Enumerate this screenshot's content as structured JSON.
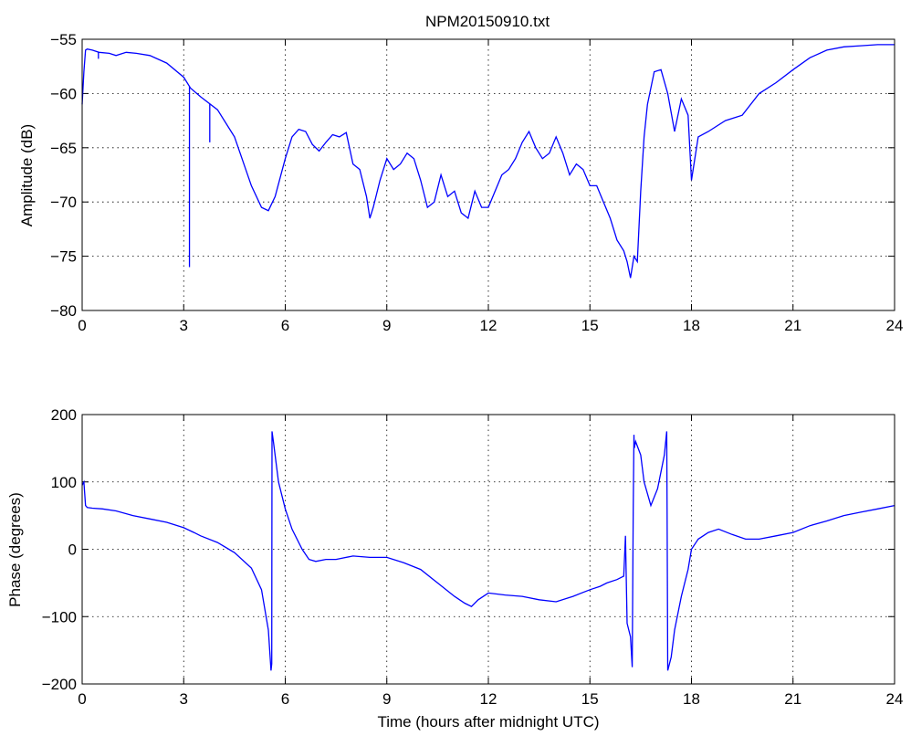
{
  "title": "NPM20150910.txt",
  "line_color": "#0000ff",
  "chart_data": [
    {
      "type": "line",
      "title": "NPM20150910.txt",
      "xlabel": "",
      "ylabel": "Amplitude (dB)",
      "xlim": [
        0,
        24
      ],
      "ylim": [
        -80,
        -55
      ],
      "xticks": [
        0,
        3,
        6,
        9,
        12,
        15,
        18,
        21,
        24
      ],
      "yticks": [
        -80,
        -75,
        -70,
        -65,
        -60,
        -55
      ],
      "xtick_labels": [
        "0",
        "3",
        "6",
        "9",
        "12",
        "15",
        "18",
        "21",
        "24"
      ],
      "ytick_labels": [
        "−80",
        "−75",
        "−70",
        "−65",
        "−60",
        "−55"
      ],
      "grid": true,
      "series": [
        {
          "x": [
            0,
            0.05,
            0.1,
            0.15,
            0.3,
            0.5,
            0.8,
            1.0,
            1.3,
            1.6,
            2.0,
            2.5,
            3.0,
            3.2,
            3.5,
            4.0,
            4.5,
            5.0,
            5.3,
            5.5,
            5.7,
            6.0,
            6.2,
            6.4,
            6.6,
            6.8,
            7.0,
            7.2,
            7.4,
            7.6,
            7.8,
            8.0,
            8.2,
            8.4,
            8.5,
            8.6,
            8.8,
            9.0,
            9.2,
            9.4,
            9.6,
            9.8,
            10.0,
            10.2,
            10.4,
            10.6,
            10.8,
            11.0,
            11.2,
            11.4,
            11.6,
            11.8,
            12.0,
            12.2,
            12.4,
            12.6,
            12.8,
            13.0,
            13.2,
            13.4,
            13.6,
            13.8,
            14.0,
            14.2,
            14.4,
            14.6,
            14.8,
            15.0,
            15.2,
            15.4,
            15.6,
            15.8,
            16.0,
            16.1,
            16.2,
            16.3,
            16.4,
            16.5,
            16.6,
            16.7,
            16.9,
            17.1,
            17.3,
            17.5,
            17.7,
            17.9,
            18.0,
            18.2,
            18.5,
            19.0,
            19.5,
            20.0,
            20.5,
            21.0,
            21.5,
            22.0,
            22.5,
            23.0,
            23.5,
            24.0
          ],
          "y": [
            -61,
            -58,
            -56,
            -55.9,
            -56,
            -56.2,
            -56.3,
            -56.5,
            -56.2,
            -56.3,
            -56.5,
            -57.2,
            -58.5,
            -59.5,
            -60.3,
            -61.5,
            -64,
            -68.5,
            -70.5,
            -70.8,
            -69.5,
            -66,
            -64,
            -63.3,
            -63.5,
            -64.7,
            -65.3,
            -64.5,
            -63.8,
            -64,
            -63.6,
            -66.5,
            -67,
            -69.5,
            -71.5,
            -70.5,
            -68,
            -66,
            -67,
            -66.5,
            -65.5,
            -66,
            -68,
            -70.5,
            -70,
            -67.5,
            -69.5,
            -69,
            -71,
            -71.5,
            -69,
            -70.5,
            -70.5,
            -69,
            -67.5,
            -67,
            -66,
            -64.5,
            -63.5,
            -65,
            -66,
            -65.5,
            -64,
            -65.5,
            -67.5,
            -66.5,
            -67,
            -68.5,
            -68.5,
            -70,
            -71.5,
            -73.5,
            -74.5,
            -75.5,
            -77,
            -75,
            -75.5,
            -69,
            -64,
            -61,
            -58,
            -57.8,
            -60,
            -63.5,
            -60.5,
            -62,
            -68,
            -64,
            -63.5,
            -62.5,
            -62,
            -60,
            -59,
            -57.8,
            -56.7,
            -56,
            -55.7,
            -55.6,
            -55.5,
            -55.5
          ],
          "spikes": [
            {
              "x": 3.17,
              "y": -76
            },
            {
              "x": 3.77,
              "y": -64.5
            },
            {
              "x": 0.48,
              "y": -56.8
            }
          ]
        }
      ]
    },
    {
      "type": "line",
      "title": "",
      "xlabel": "Time (hours after midnight UTC)",
      "ylabel": "Phase (degrees)",
      "xlim": [
        0,
        24
      ],
      "ylim": [
        -200,
        200
      ],
      "xticks": [
        0,
        3,
        6,
        9,
        12,
        15,
        18,
        21,
        24
      ],
      "yticks": [
        -200,
        -100,
        0,
        100,
        200
      ],
      "xtick_labels": [
        "0",
        "3",
        "6",
        "9",
        "12",
        "15",
        "18",
        "21",
        "24"
      ],
      "ytick_labels": [
        "−200",
        "−100",
        "0",
        "100",
        "200"
      ],
      "grid": true,
      "series": [
        {
          "x": [
            0,
            0.05,
            0.1,
            0.15,
            0.3,
            0.6,
            1.0,
            1.5,
            2.0,
            2.5,
            3.0,
            3.3,
            3.5,
            4.0,
            4.5,
            5.0,
            5.3,
            5.5,
            5.58,
            5.6,
            5.61,
            5.65,
            5.8,
            6.0,
            6.2,
            6.5,
            6.7,
            6.9,
            7.2,
            7.5,
            8.0,
            8.5,
            9.0,
            9.5,
            10.0,
            10.5,
            11.0,
            11.3,
            11.5,
            11.7,
            12.0,
            12.5,
            13.0,
            13.5,
            14.0,
            14.5,
            15.0,
            15.3,
            15.5,
            15.8,
            16.0,
            16.05,
            16.1,
            16.2,
            16.25,
            16.28,
            16.3,
            16.31,
            16.35,
            16.5,
            16.6,
            16.8,
            17.0,
            17.2,
            17.27,
            17.28,
            17.3,
            17.4,
            17.5,
            17.7,
            17.9,
            18.0,
            18.2,
            18.5,
            18.8,
            19.2,
            19.6,
            20.0,
            20.5,
            21.0,
            21.5,
            22.0,
            22.5,
            23.0,
            23.5,
            24.0
          ],
          "y": [
            95,
            100,
            65,
            62,
            61,
            60,
            57,
            50,
            45,
            40,
            32,
            25,
            20,
            10,
            -5,
            -28,
            -60,
            -120,
            -180,
            -170,
            175,
            160,
            100,
            60,
            30,
            0,
            -15,
            -18,
            -15,
            -15,
            -10,
            -12,
            -12,
            -20,
            -30,
            -50,
            -70,
            -80,
            -85,
            -75,
            -65,
            -68,
            -70,
            -75,
            -78,
            -70,
            -60,
            -55,
            -50,
            -45,
            -40,
            20,
            -110,
            -130,
            -175,
            60,
            170,
            150,
            160,
            140,
            100,
            65,
            90,
            140,
            175,
            60,
            -180,
            -160,
            -120,
            -70,
            -30,
            0,
            15,
            25,
            30,
            22,
            15,
            15,
            20,
            25,
            35,
            42,
            50,
            55,
            60,
            65
          ]
        }
      ]
    }
  ]
}
